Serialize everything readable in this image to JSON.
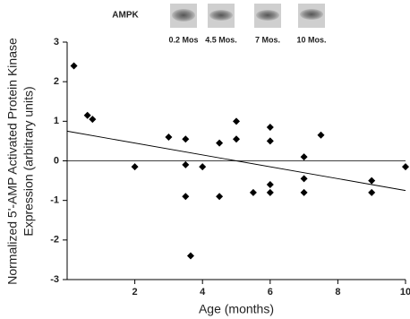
{
  "chart_data": {
    "type": "scatter",
    "blot_title": "AMPK",
    "blot_labels": [
      "0.2 Mos",
      "4.5 Mos.",
      "7 Mos.",
      "10 Mos."
    ],
    "y_label_lines": [
      "Normalized 5'-AMP Activated Protein Kinase",
      "Expression (arbitrary units)"
    ],
    "x_label": "Age (months)",
    "xlim": [
      0,
      10
    ],
    "xticks": [
      2,
      4,
      6,
      8,
      10
    ],
    "ylim": [
      -3,
      3
    ],
    "yticks": [
      -3,
      -2,
      -1,
      0,
      1,
      2,
      3
    ],
    "reference_y": 0,
    "trend": {
      "x": [
        0,
        10
      ],
      "y": [
        0.75,
        -0.75
      ]
    },
    "color": "#000000",
    "x": [
      0.2,
      0.6,
      0.75,
      2,
      3,
      3.5,
      3.5,
      3.5,
      3.65,
      4,
      4.5,
      4.5,
      5,
      5,
      5.5,
      6,
      6,
      6,
      6,
      7.5,
      7,
      7,
      7,
      9,
      9,
      10
    ],
    "y": [
      2.4,
      1.15,
      1.05,
      -0.15,
      0.6,
      0.55,
      -0.1,
      -0.9,
      -2.4,
      -0.15,
      0.45,
      -0.9,
      1.0,
      0.55,
      -0.8,
      0.85,
      0.5,
      -0.6,
      -0.8,
      0.65,
      0.1,
      -0.45,
      -0.8,
      -0.5,
      -0.8,
      -0.15
    ]
  }
}
